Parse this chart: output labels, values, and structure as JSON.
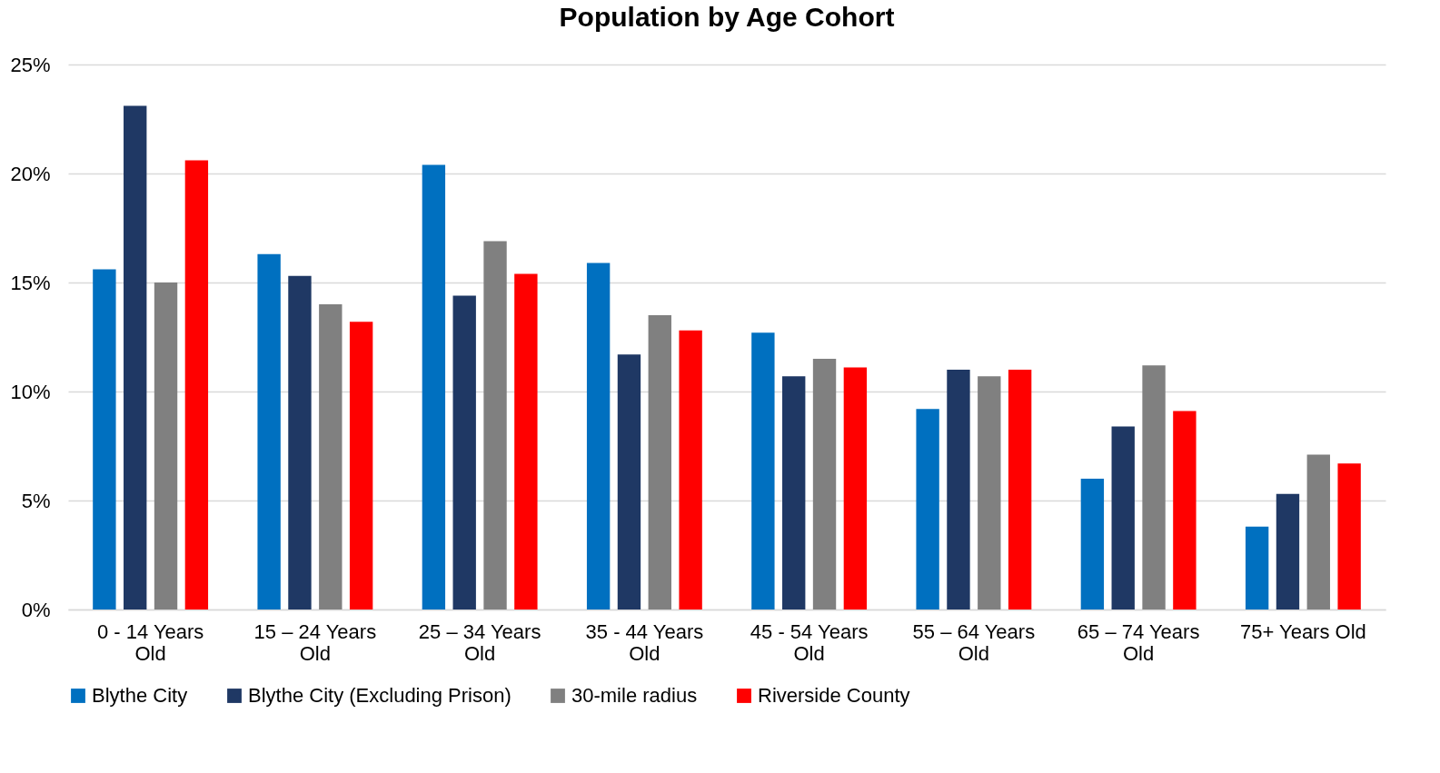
{
  "chart_data": {
    "type": "bar",
    "title": "Population by Age Cohort",
    "categories": [
      "0 - 14 Years Old",
      "15 – 24 Years Old",
      "25 – 34 Years Old",
      "35 - 44 Years Old",
      "45 - 54 Years Old",
      "55 – 64 Years Old",
      "65 – 74 Years Old",
      "75+ Years Old"
    ],
    "series": [
      {
        "name": "Blythe City",
        "color": "#0070c0",
        "values": [
          15.6,
          16.3,
          20.4,
          15.9,
          12.7,
          9.2,
          6.0,
          3.8
        ]
      },
      {
        "name": "Blythe City (Excluding Prison)",
        "color": "#1f3864",
        "values": [
          23.1,
          15.3,
          14.4,
          11.7,
          10.7,
          11.0,
          8.4,
          5.3
        ]
      },
      {
        "name": "30-mile radius",
        "color": "#808080",
        "values": [
          15.0,
          14.0,
          16.9,
          13.5,
          11.5,
          10.7,
          11.2,
          7.1
        ]
      },
      {
        "name": "Riverside County",
        "color": "#ff0000",
        "values": [
          20.6,
          13.2,
          15.4,
          12.8,
          11.1,
          11.0,
          9.1,
          6.7
        ]
      }
    ],
    "ylim": [
      0,
      25
    ],
    "yticks": [
      {
        "value": 0,
        "label": "0%"
      },
      {
        "value": 5,
        "label": "5%"
      },
      {
        "value": 10,
        "label": "10%"
      },
      {
        "value": 15,
        "label": "15%"
      },
      {
        "value": 20,
        "label": "20%"
      },
      {
        "value": 25,
        "label": "25%"
      }
    ],
    "grid": "y",
    "legend": "bottom"
  }
}
